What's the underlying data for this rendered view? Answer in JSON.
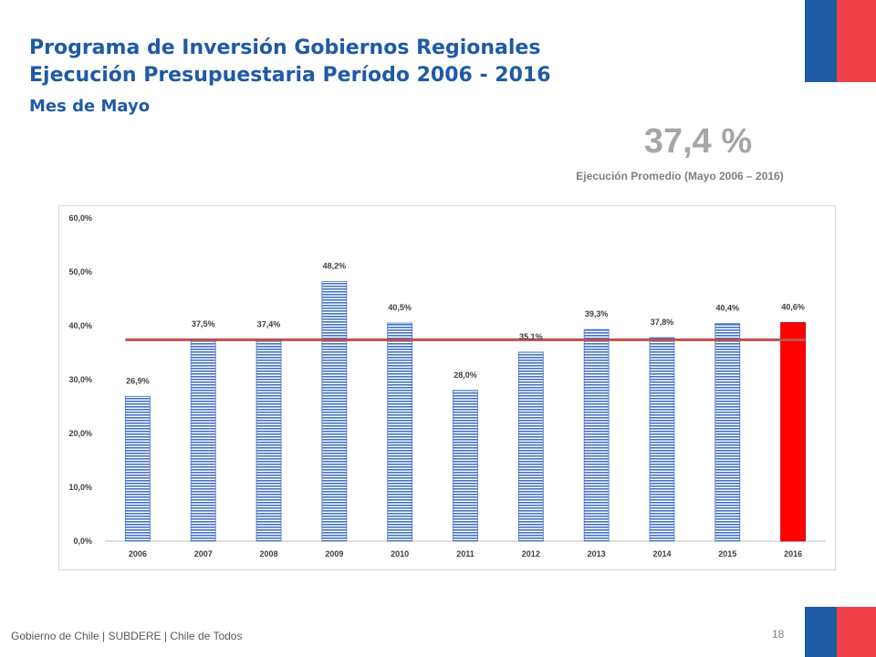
{
  "header": {
    "title_line1": "Programa de Inversión Gobiernos Regionales",
    "title_line2": "Ejecución Presupuestaria Período 2006 - 2016",
    "subtitle": "Mes de Mayo"
  },
  "average": {
    "value": "37,4 %",
    "label": "Ejecución Promedio (Mayo 2006 – 2016)"
  },
  "footer": {
    "text": "Gobierno de Chile | SUBDERE | Chile de Todos",
    "page_number": "18"
  },
  "colors": {
    "title": "#1f5aa6",
    "bar": "#4472c4",
    "bar_highlight": "#ff0000",
    "average_line": "#c0504d",
    "flag_blue": "#1f5aa6",
    "flag_red": "#ef4048"
  },
  "chart_data": {
    "type": "bar",
    "categories": [
      "2006",
      "2007",
      "2008",
      "2009",
      "2010",
      "2011",
      "2012",
      "2013",
      "2014",
      "2015",
      "2016"
    ],
    "values": [
      26.9,
      37.5,
      37.4,
      48.2,
      40.5,
      28.0,
      35.1,
      39.3,
      37.8,
      40.4,
      40.6
    ],
    "data_labels": [
      "26,9%",
      "37,5%",
      "37,4%",
      "48,2%",
      "40,5%",
      "28,0%",
      "35,1%",
      "39,3%",
      "37,8%",
      "40,4%",
      "40,6%"
    ],
    "highlight_category": "2016",
    "average_line": 37.4,
    "ylim": [
      0,
      60
    ],
    "yticks": [
      0,
      10,
      20,
      30,
      40,
      50,
      60
    ],
    "ytick_labels": [
      "0,0%",
      "10,0%",
      "20,0%",
      "30,0%",
      "40,0%",
      "50,0%",
      "60,0%"
    ],
    "title": "",
    "xlabel": "",
    "ylabel": "",
    "grid": false,
    "legend": false
  }
}
